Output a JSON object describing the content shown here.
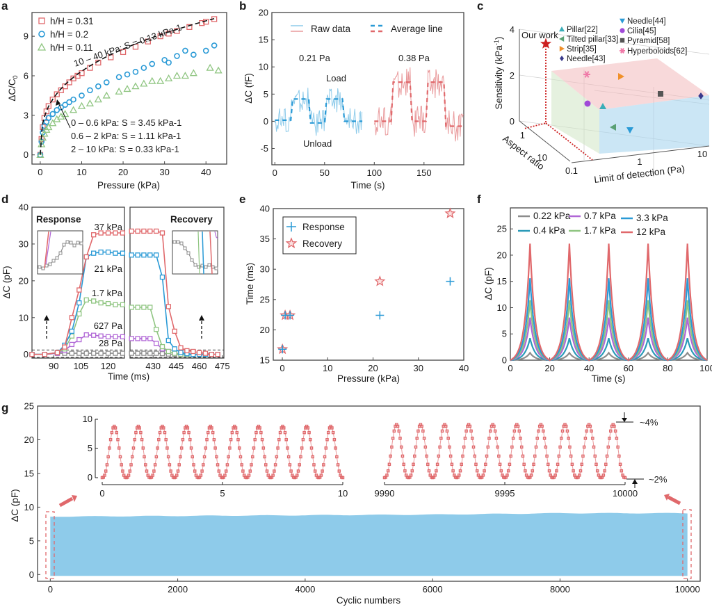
{
  "colors": {
    "red": "#e0686b",
    "blue": "#2a9ad6",
    "green": "#8fc581",
    "purple": "#b066d6",
    "gray": "#8c8c8c",
    "teal": "#2a9ab8",
    "lightblue": "#8ecbea",
    "pink_red": "#e99a9c"
  },
  "chart_data": [
    {
      "panel": "a",
      "type": "scatter",
      "xlabel": "Pressure (kPa)",
      "ylabel": "ΔC/C0",
      "xlim": [
        -2,
        45
      ],
      "ylim": [
        -0.7,
        10.8
      ],
      "xticks": [
        "0",
        "10",
        "20",
        "30",
        "40"
      ],
      "yticks": [
        "0",
        "3",
        "6",
        "9"
      ],
      "legend": [
        "h/H = 0.31",
        "h/H = 0.2",
        "h/H = 0.11"
      ],
      "annotations": [
        "10 – 40 kPa: S = 0.13 kPa-1",
        "0 – 0.6 kPa: S = 3.45 kPa-1",
        "0.6 – 2 kPa: S = 1.11 kPa-1",
        "2 – 10 kPa: S = 0.33 kPa-1"
      ],
      "series": [
        {
          "name": "h/H = 0.31",
          "marker": "square",
          "x": [
            0,
            0.3,
            0.6,
            1,
            1.5,
            2,
            3,
            4,
            5,
            6,
            7,
            8,
            9,
            10,
            12,
            14,
            17,
            20,
            23,
            26,
            29,
            31,
            33,
            36,
            39,
            40,
            42
          ],
          "y": [
            0,
            1.2,
            2.1,
            2.8,
            3.3,
            3.7,
            4.2,
            4.6,
            4.9,
            5.2,
            5.5,
            5.8,
            6.0,
            6.2,
            6.6,
            7.0,
            7.4,
            7.8,
            8.2,
            8.6,
            9.0,
            9.2,
            9.4,
            9.7,
            10.0,
            10.1,
            10.3
          ]
        },
        {
          "name": "h/H = 0.2",
          "marker": "circle",
          "x": [
            0,
            0.3,
            0.6,
            1,
            1.5,
            2,
            3,
            4,
            5,
            6,
            7,
            8,
            10,
            12,
            14,
            16,
            19,
            21,
            23,
            25,
            27,
            30,
            31,
            33,
            35,
            37,
            40,
            42
          ],
          "y": [
            0,
            1.0,
            1.7,
            2.2,
            2.5,
            2.8,
            3.1,
            3.4,
            3.6,
            3.8,
            4.0,
            4.2,
            4.5,
            4.9,
            5.2,
            5.5,
            5.9,
            6.1,
            6.3,
            6.6,
            6.9,
            7.2,
            7.0,
            7.5,
            7.9,
            7.6,
            7.9,
            8.3
          ]
        },
        {
          "name": "h/H = 0.11",
          "marker": "triangle",
          "x": [
            0,
            0.3,
            0.6,
            1,
            1.5,
            2,
            3,
            4,
            5,
            6,
            8,
            10,
            12,
            14,
            16,
            19,
            21,
            23,
            25,
            27,
            29,
            31,
            33,
            35,
            37,
            41,
            43
          ],
          "y": [
            0,
            0.8,
            1.3,
            1.6,
            1.9,
            2.1,
            2.4,
            2.7,
            2.9,
            3.1,
            3.4,
            3.7,
            3.9,
            4.2,
            4.5,
            4.8,
            5.0,
            5.2,
            5.4,
            5.6,
            5.6,
            5.8,
            6.0,
            6.0,
            6.2,
            6.6,
            6.4
          ]
        }
      ]
    },
    {
      "panel": "b",
      "type": "line",
      "xlabel": "Time (s)",
      "ylabel": "ΔC (fF)",
      "xlim": [
        -3,
        190
      ],
      "ylim": [
        -8,
        20
      ],
      "xticks": [
        "0",
        "50",
        "100",
        "150"
      ],
      "yticks": [
        "-5",
        "0",
        "5",
        "10",
        "15",
        "20"
      ],
      "legend": [
        "Raw data",
        "Average line"
      ],
      "annotations": [
        "0.21 Pa",
        "0.38 Pa",
        "Load",
        "Unload"
      ],
      "series": [
        {
          "name": "Average line (0.21 Pa)",
          "x": [
            0,
            16,
            18,
            34,
            36,
            50,
            52,
            68,
            70,
            88
          ],
          "y": [
            0.2,
            0.2,
            4.1,
            4.1,
            -0.3,
            -0.3,
            4.1,
            4.1,
            0,
            0
          ]
        },
        {
          "name": "Average line (0.38 Pa)",
          "x": [
            100,
            117,
            119,
            136,
            138,
            152,
            154,
            170,
            172,
            190
          ],
          "y": [
            0,
            0,
            7.2,
            7.2,
            0,
            0,
            7.2,
            7.2,
            -0.9,
            -0.9
          ]
        }
      ]
    },
    {
      "panel": "c",
      "type": "scatter",
      "xlabel": "Limit of detection (Pa)",
      "ylabel": "Sensitivity (kPa-1)",
      "zlabel": "Aspect ratio",
      "zticks_sensitivity": [
        "0",
        "2",
        "4"
      ],
      "xticks_lod": [
        "0.1",
        "1",
        "10"
      ],
      "yticks_aspect": [
        "1",
        "10"
      ],
      "legend": [
        "Pillar[22]",
        "Tilted pillar[33]",
        "Strip[35]",
        "Needle[43]",
        "Needle[44]",
        "Cilia[45]",
        "Pyramid[58]",
        "Hyperboloids[62]"
      ],
      "annotations": [
        "Our work"
      ],
      "points": [
        {
          "name": "Our work",
          "marker": "star",
          "color": "#cc1f1f"
        },
        {
          "name": "Pillar[22]",
          "marker": "triangle-up",
          "color": "#3aaeb8"
        },
        {
          "name": "Tilted pillar[33]",
          "marker": "triangle-left",
          "color": "#5aa074"
        },
        {
          "name": "Strip[35]",
          "marker": "triangle-right",
          "color": "#f0902a"
        },
        {
          "name": "Needle[43]",
          "marker": "diamond",
          "color": "#3a3a8c"
        },
        {
          "name": "Needle[44]",
          "marker": "triangle-down",
          "color": "#2a9ad6"
        },
        {
          "name": "Cilia[45]",
          "marker": "circle",
          "color": "#a04ad8"
        },
        {
          "name": "Pyramid[58]",
          "marker": "square",
          "color": "#555555"
        },
        {
          "name": "Hyperboloids[62]",
          "marker": "asterisk",
          "color": "#f07aa8"
        }
      ]
    },
    {
      "panel": "d",
      "type": "line",
      "xlabel": "Time (ms)",
      "ylabel": "ΔC (pF)",
      "ylim": [
        -1,
        40
      ],
      "yticks": [
        "0",
        "10",
        "20",
        "30",
        "40"
      ],
      "xticks_left": [
        "90",
        "105",
        "120"
      ],
      "xticks_right": [
        "430",
        "445",
        "460",
        "475"
      ],
      "subtitles": [
        "Response",
        "Recovery"
      ],
      "labels": [
        "37 kPa",
        "21 kPa",
        "1.7 kPa",
        "627 Pa",
        "28 Pa"
      ],
      "series": [
        {
          "name": "37 kPa",
          "left": {
            "x": [
              78,
              85,
              92,
              96,
              100,
              104,
              108,
              112,
              116,
              120,
              124,
              128
            ],
            "y": [
              0,
              0,
              0.5,
              2,
              10,
              17.5,
              26.5,
              32.5,
              33,
              33,
              33,
              33
            ]
          },
          "right": {
            "x": [
              416,
              420,
              424,
              428,
              432,
              436,
              440,
              444,
              448,
              452,
              456,
              460,
              464,
              468,
              472
            ],
            "y": [
              33.5,
              33.5,
              33.5,
              33.5,
              33.5,
              33,
              13,
              6.3,
              1.8,
              1,
              0.8,
              0.5,
              0.3,
              0,
              0
            ]
          }
        },
        {
          "name": "21 kPa",
          "left": {
            "x": [
              78,
              85,
              92,
              96,
              100,
              104,
              108,
              112,
              116,
              120,
              124,
              128
            ],
            "y": [
              0,
              0,
              0.5,
              2.5,
              6.3,
              14,
              26.5,
              27.5,
              27.8,
              27.8,
              27.5,
              27.5
            ]
          },
          "right": {
            "x": [
              416,
              420,
              424,
              428,
              432,
              436,
              440,
              444,
              448,
              452,
              456,
              460,
              464,
              468,
              472
            ],
            "y": [
              27,
              27,
              27,
              27,
              27,
              21,
              3.8,
              1.5,
              0.5,
              0.2,
              0,
              0,
              0,
              0,
              0
            ]
          }
        },
        {
          "name": "1.7 kPa",
          "left": {
            "x": [
              78,
              85,
              92,
              96,
              100,
              104,
              108,
              112,
              116,
              120,
              124,
              128
            ],
            "y": [
              0,
              0,
              0.5,
              1.5,
              5,
              11,
              14.8,
              14.5,
              14,
              13.8,
              13.5,
              13.5
            ]
          },
          "right": {
            "x": [
              416,
              420,
              424,
              428,
              432,
              436,
              440,
              444,
              448,
              452,
              456,
              460,
              464,
              468,
              472
            ],
            "y": [
              12.8,
              12.8,
              12.8,
              12.8,
              6.8,
              2.1,
              0.8,
              0.3,
              0,
              0,
              0,
              0,
              0,
              0,
              0
            ]
          }
        },
        {
          "name": "627 Pa",
          "left": {
            "x": [
              78,
              85,
              92,
              96,
              100,
              104,
              108,
              112,
              116,
              120,
              124,
              128
            ],
            "y": [
              0,
              0,
              0.3,
              1,
              2.7,
              4,
              5.3,
              5.2,
              5,
              4.8,
              4.8,
              4.8
            ]
          },
          "right": {
            "x": [
              416,
              420,
              424,
              428,
              432,
              436,
              440,
              444,
              448,
              452,
              456,
              460,
              464,
              468,
              472
            ],
            "y": [
              4.3,
              4.3,
              4.3,
              4.3,
              3,
              1.5,
              0.8,
              0.3,
              0.2,
              0,
              0,
              0,
              0,
              0,
              0
            ]
          }
        },
        {
          "name": "28 Pa",
          "left": {
            "x": [
              78,
              85,
              92,
              96,
              100,
              104,
              108,
              112,
              116,
              120,
              124,
              128
            ],
            "y": [
              0,
              0,
              0.3,
              0.3,
              0.3,
              0.3,
              0.3,
              0.3,
              0.3,
              0.3,
              0.3,
              0.3
            ]
          },
          "right": {
            "x": [
              416,
              420,
              424,
              428,
              432,
              436,
              440,
              444,
              448,
              452,
              456,
              460,
              464,
              468,
              472
            ],
            "y": [
              0.3,
              0.3,
              0.3,
              0.3,
              0.3,
              0.2,
              0.1,
              0,
              0,
              0,
              0,
              0,
              0,
              0,
              0
            ]
          }
        }
      ]
    },
    {
      "panel": "e",
      "type": "scatter",
      "xlabel": "Pressure (kPa)",
      "ylabel": "Time (ms)",
      "xlim": [
        -2,
        40
      ],
      "ylim": [
        15,
        40
      ],
      "xticks": [
        "0",
        "10",
        "20",
        "30",
        "40"
      ],
      "yticks": [
        "15",
        "20",
        "25",
        "30",
        "35",
        "40"
      ],
      "legend": [
        "Response",
        "Recovery"
      ],
      "series": [
        {
          "name": "Response",
          "marker": "plus",
          "x": [
            0.028,
            0.627,
            1.7,
            21.5,
            37
          ],
          "y": [
            16.8,
            22.4,
            22.4,
            22.4,
            28
          ]
        },
        {
          "name": "Recovery",
          "marker": "star",
          "x": [
            0.028,
            0.627,
            1.7,
            21.5,
            37
          ],
          "y": [
            16.8,
            22.4,
            22.4,
            28,
            39.2
          ]
        }
      ]
    },
    {
      "panel": "f",
      "type": "line",
      "xlabel": "Time (s)",
      "ylabel": "ΔC (pF)",
      "xlim": [
        0,
        100
      ],
      "ylim": [
        0,
        29
      ],
      "xticks": [
        "0",
        "20",
        "40",
        "60",
        "80",
        "100"
      ],
      "yticks": [
        "0",
        "5",
        "10",
        "15",
        "20",
        "25"
      ],
      "legend": [
        "0.22 kPa",
        "0.7 kPa",
        "3.3 kPa",
        "0.4 kPa",
        "1.7 kPa",
        "12 kPa"
      ],
      "period_s": 20,
      "series": [
        {
          "name": "0.22 kPa",
          "peak": 1.4
        },
        {
          "name": "0.4 kPa",
          "peak": 4.2
        },
        {
          "name": "0.7 kPa",
          "peak": 8.1
        },
        {
          "name": "1.7 kPa",
          "peak": 11.4
        },
        {
          "name": "3.3 kPa",
          "peak": 15.6
        },
        {
          "name": "12 kPa",
          "peak": 22.2
        }
      ]
    },
    {
      "panel": "g",
      "type": "area",
      "xlabel": "Cyclic numbers",
      "ylabel": "ΔC (pF)",
      "xlim": [
        -200,
        10200
      ],
      "ylim": [
        -1,
        25
      ],
      "xticks": [
        "0",
        "2000",
        "4000",
        "6000",
        "8000",
        "10000"
      ],
      "yticks": [
        "0",
        "5",
        "10",
        "15",
        "20",
        "25"
      ],
      "envelope": {
        "x": [
          0,
          2000,
          4000,
          6000,
          8000,
          10000
        ],
        "max": [
          8.6,
          8.7,
          8.8,
          8.9,
          9.1,
          9.1
        ],
        "min": [
          -0.2,
          -0.2,
          -0.2,
          -0.2,
          -0.2,
          -0.2
        ]
      },
      "insets": [
        {
          "xticks": [
            "0",
            "5",
            "10"
          ],
          "yticks": [
            "0",
            "5",
            "10"
          ],
          "xlim": [
            0,
            10
          ],
          "ylim": [
            0,
            10
          ],
          "cycles": 10,
          "peak": 8.8
        },
        {
          "xticks": [
            "9990",
            "9995",
            "10000"
          ],
          "xlim": [
            9990,
            10000
          ],
          "cycles": 10,
          "peak": 9.1
        }
      ],
      "annotations": [
        "~4%",
        "~2%"
      ]
    }
  ],
  "panel_labels": [
    "a",
    "b",
    "c",
    "d",
    "e",
    "f",
    "g"
  ]
}
